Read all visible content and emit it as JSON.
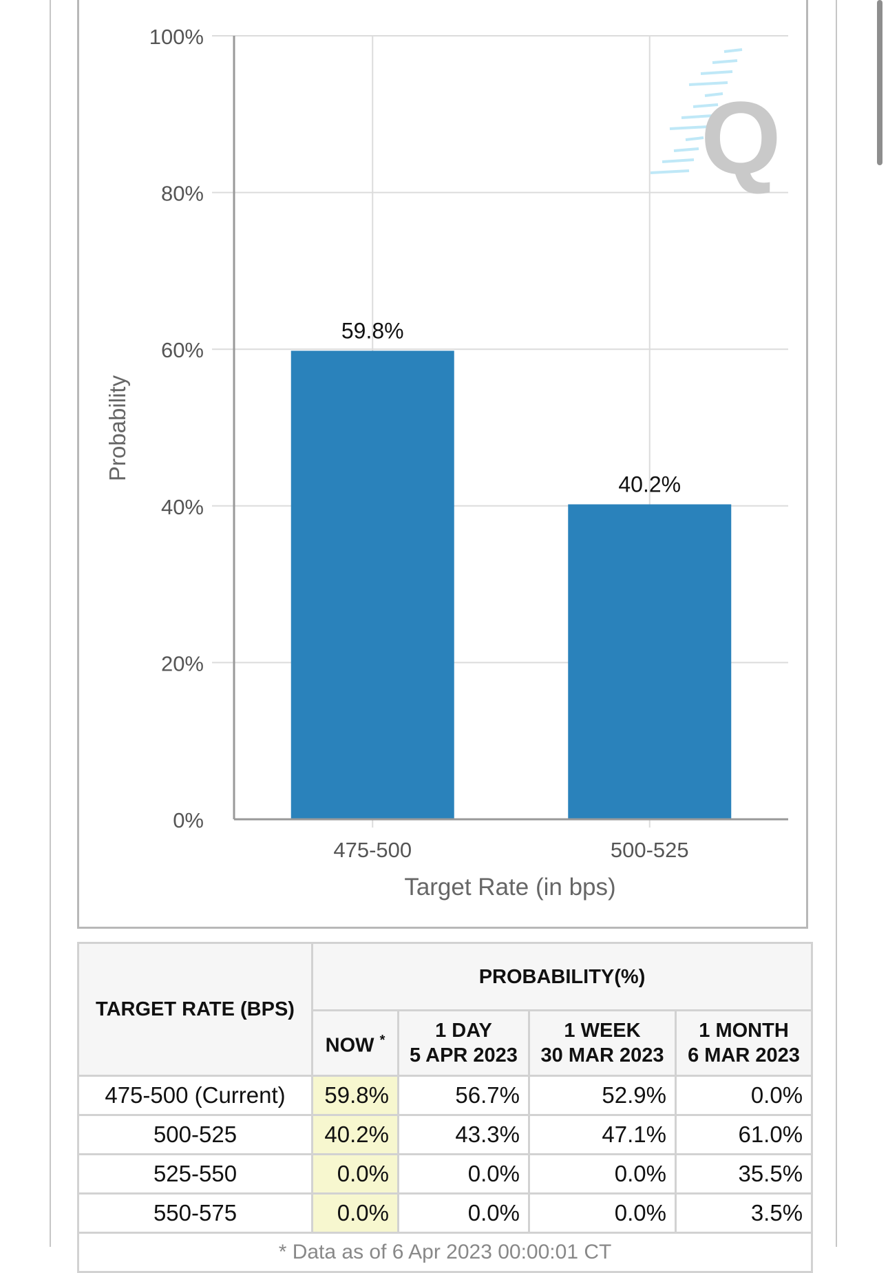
{
  "chart_data": {
    "type": "bar",
    "categories": [
      "475-500",
      "500-525"
    ],
    "values": [
      59.8,
      40.2
    ],
    "data_labels": [
      "59.8%",
      "40.2%"
    ],
    "xlabel": "Target Rate (in bps)",
    "ylabel": "Probability",
    "ylim": [
      0,
      100
    ],
    "yticks": [
      "0%",
      "20%",
      "40%",
      "60%",
      "80%",
      "100%"
    ],
    "grid": true,
    "bar_color": "#2a82bb"
  },
  "watermark": {
    "letter": "Q"
  },
  "table": {
    "rate_header": "TARGET RATE (BPS)",
    "prob_header": "PROBABILITY(%)",
    "columns": [
      {
        "line1": "NOW",
        "marker": "*",
        "line2": ""
      },
      {
        "line1": "1 DAY",
        "line2": "5 APR 2023"
      },
      {
        "line1": "1 WEEK",
        "line2": "30 MAR 2023"
      },
      {
        "line1": "1 MONTH",
        "line2": "6 MAR 2023"
      }
    ],
    "rows": [
      {
        "rate": "475-500 (Current)",
        "values": [
          "59.8%",
          "56.7%",
          "52.9%",
          "0.0%"
        ]
      },
      {
        "rate": "500-525",
        "values": [
          "40.2%",
          "43.3%",
          "47.1%",
          "61.0%"
        ]
      },
      {
        "rate": "525-550",
        "values": [
          "0.0%",
          "0.0%",
          "0.0%",
          "35.5%"
        ]
      },
      {
        "rate": "550-575",
        "values": [
          "0.0%",
          "0.0%",
          "0.0%",
          "3.5%"
        ]
      }
    ],
    "footnote": "* Data as of 6 Apr 2023 00:00:01 CT"
  }
}
